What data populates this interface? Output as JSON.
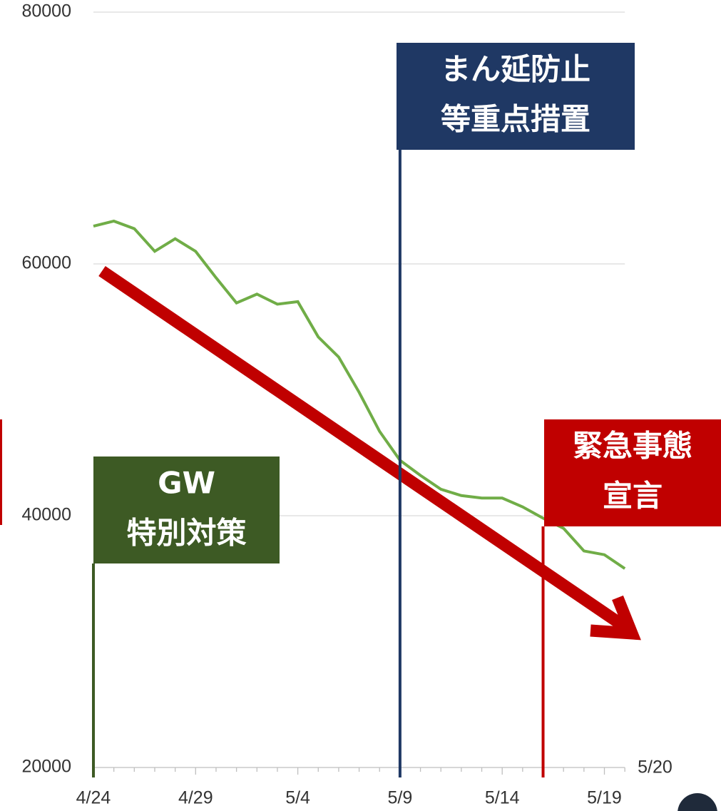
{
  "chart_data": {
    "type": "line",
    "categories": [
      "4/24",
      null,
      null,
      null,
      null,
      "4/29",
      null,
      null,
      null,
      null,
      "5/4",
      null,
      null,
      null,
      null,
      "5/9",
      null,
      null,
      null,
      null,
      "5/14",
      null,
      null,
      null,
      null,
      "5/19",
      "5/20"
    ],
    "series": [
      {
        "name": null,
        "color": "#70ad47",
        "values": [
          63000,
          63400,
          62800,
          61000,
          62000,
          61000,
          58900,
          56900,
          57600,
          56800,
          57000,
          54200,
          52600,
          49800,
          46700,
          44400,
          43200,
          42100,
          41600,
          41400,
          41400,
          40700,
          39800,
          39000,
          37200,
          36900,
          35800
        ]
      }
    ],
    "ylim": [
      20000,
      80000
    ],
    "yticks": [
      20000,
      40000,
      60000,
      80000
    ],
    "grid": true,
    "annotations": [
      {
        "x": "4/24",
        "color": "#3d5a24",
        "lines": [
          "GW",
          "特別対策"
        ]
      },
      {
        "x": "5/9",
        "color": "#1f3864",
        "lines": [
          "まん延防止",
          "等重点措置"
        ]
      },
      {
        "x": "5/16",
        "color": "#c00000",
        "lines": [
          "緊急事態",
          "宣言"
        ]
      }
    ]
  }
}
